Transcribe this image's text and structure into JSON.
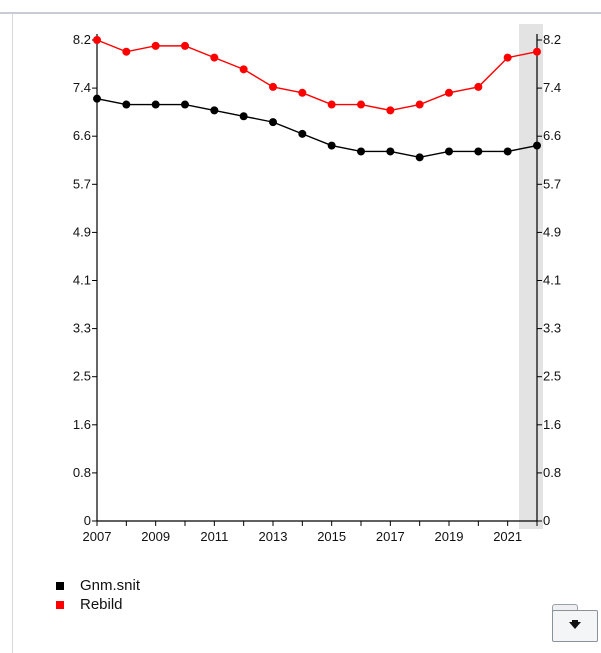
{
  "chart_data": {
    "type": "line",
    "x": [
      2007,
      2008,
      2009,
      2010,
      2011,
      2012,
      2013,
      2014,
      2015,
      2016,
      2017,
      2018,
      2019,
      2020,
      2021,
      2022
    ],
    "x_tick_labels": [
      "2007",
      "2009",
      "2011",
      "2013",
      "2015",
      "2017",
      "2019",
      "2021"
    ],
    "y_tick_labels": [
      "0",
      "0.8",
      "1.6",
      "2.5",
      "3.3",
      "4.1",
      "4.9",
      "5.7",
      "6.6",
      "7.4",
      "8.2"
    ],
    "y_tick_values": [
      0,
      0.82,
      1.64,
      2.46,
      3.28,
      4.1,
      4.92,
      5.74,
      6.56,
      7.38,
      8.2
    ],
    "ylim": [
      0,
      8.2
    ],
    "xlim": [
      2007,
      2022
    ],
    "highlight_year": 2022,
    "series": [
      {
        "name": "Gnm.snit",
        "color": "#000000",
        "values": [
          7.2,
          7.1,
          7.1,
          7.1,
          7.0,
          6.9,
          6.8,
          6.6,
          6.4,
          6.3,
          6.3,
          6.2,
          6.3,
          6.3,
          6.3,
          6.4
        ]
      },
      {
        "name": "Rebild",
        "color": "#ff0000",
        "values": [
          8.2,
          8.0,
          8.1,
          8.1,
          7.9,
          7.7,
          7.4,
          7.3,
          7.1,
          7.1,
          7.0,
          7.1,
          7.3,
          7.4,
          7.9,
          8.0
        ]
      }
    ],
    "title": "",
    "xlabel": "",
    "ylabel": "",
    "grid": false,
    "legend_position": "bottom-left"
  },
  "legend": {
    "items": [
      {
        "label": "Gnm.snit",
        "color": "#000000"
      },
      {
        "label": "Rebild",
        "color": "#ff0000"
      }
    ]
  },
  "export_button": {
    "icon": "download-arrow-icon"
  }
}
